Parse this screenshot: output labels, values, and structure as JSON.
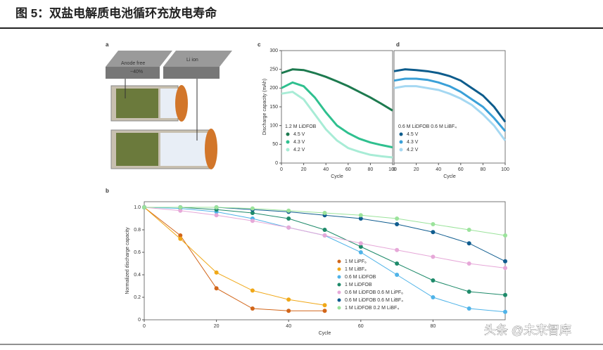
{
  "figure_title": "图 5：双盐电解质电池循环充放电寿命",
  "watermark": "头条 @未来智库",
  "diagram": {
    "label": "a",
    "anode_label": "Anode free",
    "percent_label": "~40%",
    "ion_label": "Li ion"
  },
  "chart_data": [
    {
      "type": "line",
      "label": "c",
      "xlabel": "Cycle",
      "ylabel": "Discharge capacity (mAh)",
      "legend_title": "1.2 M LiDFOB",
      "x": [
        0,
        10,
        20,
        30,
        40,
        50,
        60,
        70,
        80,
        90,
        100
      ],
      "xlim": [
        0,
        100
      ],
      "xticks": [
        0,
        20,
        40,
        60,
        80,
        100
      ],
      "ylim": [
        0,
        300
      ],
      "yticks": [
        0,
        50,
        100,
        150,
        200,
        250,
        300
      ],
      "series": [
        {
          "name": "4.5 V",
          "color": "#1d7a4f",
          "values": [
            240,
            250,
            248,
            240,
            230,
            218,
            205,
            190,
            175,
            158,
            140
          ]
        },
        {
          "name": "4.3 V",
          "color": "#2fc08f",
          "values": [
            200,
            215,
            205,
            175,
            135,
            100,
            80,
            65,
            55,
            48,
            42
          ]
        },
        {
          "name": "4.2 V",
          "color": "#a8ecd6",
          "values": [
            185,
            190,
            170,
            130,
            90,
            60,
            40,
            30,
            22,
            18,
            15
          ]
        }
      ]
    },
    {
      "type": "line",
      "label": "d",
      "xlabel": "Cycle",
      "legend_title": "0.6 M LiDFOB 0.6 M LiBF₄",
      "x": [
        0,
        10,
        20,
        30,
        40,
        50,
        60,
        70,
        80,
        90,
        100
      ],
      "xlim": [
        0,
        100
      ],
      "xticks": [
        0,
        20,
        40,
        60,
        80,
        100
      ],
      "ylim": [
        0,
        300
      ],
      "series": [
        {
          "name": "4.5 V",
          "color": "#0d5c8c",
          "values": [
            245,
            250,
            248,
            245,
            240,
            232,
            220,
            200,
            180,
            150,
            110
          ]
        },
        {
          "name": "4.3 V",
          "color": "#3aa0d8",
          "values": [
            220,
            225,
            225,
            222,
            215,
            205,
            190,
            170,
            150,
            120,
            85
          ]
        },
        {
          "name": "4.2 V",
          "color": "#a5d8f2",
          "values": [
            200,
            205,
            205,
            200,
            195,
            185,
            172,
            155,
            130,
            100,
            60
          ]
        }
      ]
    },
    {
      "type": "scatter",
      "label": "b",
      "xlabel": "Cycle",
      "ylabel": "Normalized discharge capacity",
      "x": [
        0,
        10,
        20,
        30,
        40,
        50,
        60,
        70,
        80,
        90,
        100
      ],
      "xlim": [
        0,
        100
      ],
      "xticks": [
        0,
        20,
        40,
        60,
        80
      ],
      "ylim": [
        0,
        1.05
      ],
      "yticks": [
        0,
        0.2,
        0.4,
        0.6,
        0.8,
        {
          "value": 1,
          "label": "1.0"
        }
      ],
      "series": [
        {
          "name": "1 M LiPF₆",
          "color": "#d2661a",
          "values": [
            1.0,
            0.75,
            0.28,
            0.1,
            0.08,
            0.08,
            null,
            null,
            null,
            null,
            null
          ]
        },
        {
          "name": "1 M LiBF₄",
          "color": "#f0a818",
          "values": [
            1.0,
            0.72,
            0.42,
            0.26,
            0.18,
            0.13,
            null,
            null,
            null,
            null,
            null
          ]
        },
        {
          "name": "0.6 M LiDFOB",
          "color": "#4fb3e8",
          "values": [
            1.0,
            0.99,
            0.96,
            0.9,
            0.82,
            0.75,
            0.6,
            0.4,
            0.2,
            0.1,
            0.07
          ]
        },
        {
          "name": "1 M LiDFOB",
          "color": "#1e8a6a",
          "values": [
            1.0,
            1.0,
            0.98,
            0.95,
            0.9,
            0.8,
            0.65,
            0.5,
            0.35,
            0.25,
            0.22
          ]
        },
        {
          "name": "0.6 M LiDFOB 0.6 M LiPF₆",
          "color": "#e6a8d8",
          "values": [
            1.0,
            0.97,
            0.93,
            0.88,
            0.82,
            0.75,
            0.68,
            0.62,
            0.56,
            0.5,
            0.46
          ]
        },
        {
          "name": "0.6 M LiDFOB 0.6 M LiBF₄",
          "color": "#0f5c8f",
          "values": [
            1.0,
            1.0,
            1.0,
            0.98,
            0.96,
            0.93,
            0.9,
            0.85,
            0.78,
            0.68,
            0.52
          ]
        },
        {
          "name": "1 M LiDFOB 0.2 M LiBF₄",
          "color": "#9be39b",
          "values": [
            1.0,
            1.0,
            1.0,
            0.99,
            0.97,
            0.95,
            0.93,
            0.9,
            0.85,
            0.8,
            0.75
          ]
        }
      ]
    }
  ]
}
